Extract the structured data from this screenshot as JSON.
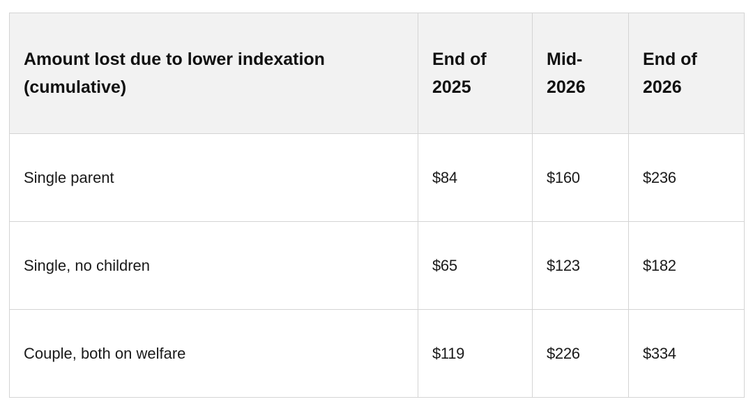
{
  "table": {
    "headers": [
      "Amount lost due to lower indexation (cumulative)",
      "End of 2025",
      "Mid-2026",
      "End of 2026"
    ],
    "rows": [
      [
        "Single parent",
        "$84",
        "$160",
        "$236"
      ],
      [
        "Single, no children",
        "$65",
        "$123",
        "$182"
      ],
      [
        "Couple, both on welfare",
        "$119",
        "$226",
        "$334"
      ]
    ]
  }
}
